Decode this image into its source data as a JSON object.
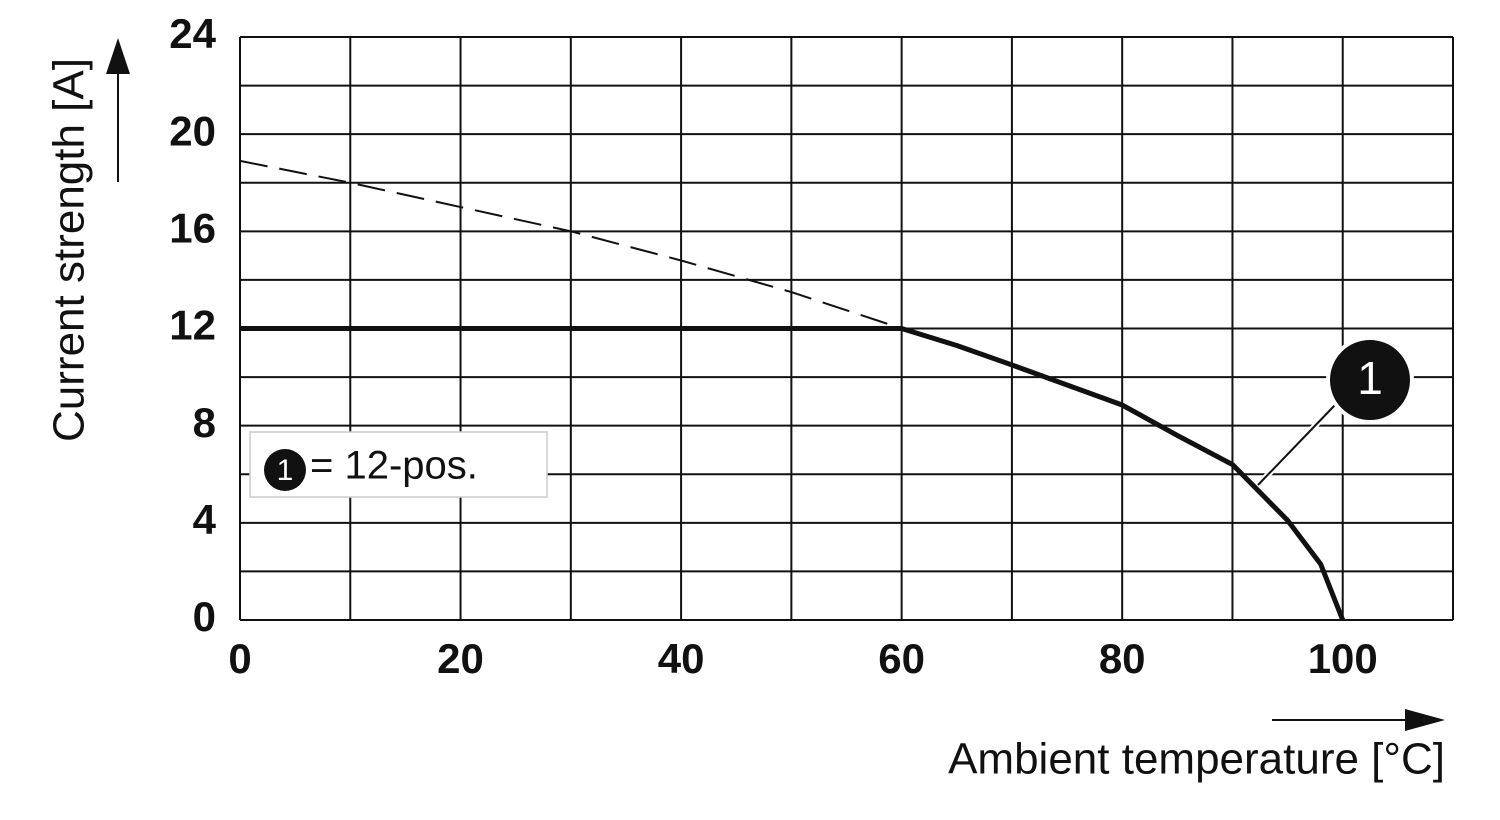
{
  "chart_data": {
    "type": "line",
    "xlabel": "Ambient temperature [°C]",
    "ylabel": "Current strength [A]",
    "xlim": [
      0,
      110
    ],
    "ylim": [
      0,
      24
    ],
    "xticks": [
      0,
      20,
      40,
      60,
      80,
      100
    ],
    "yticks": [
      0,
      4,
      8,
      12,
      16,
      20,
      24
    ],
    "x_grid": [
      0,
      10,
      20,
      30,
      40,
      50,
      60,
      70,
      80,
      90,
      100,
      110
    ],
    "y_grid": [
      0,
      2,
      4,
      6,
      8,
      10,
      12,
      14,
      16,
      18,
      20,
      22,
      24
    ],
    "grid": true,
    "series": [
      {
        "name": "= 12-pos.",
        "label": "1",
        "color": "#111111",
        "style": "solid",
        "x": [
          0,
          60,
          65,
          70,
          80,
          85,
          90,
          95,
          98,
          100
        ],
        "values": [
          12,
          12,
          11.3,
          10.5,
          8.85,
          7.6,
          6.4,
          4.1,
          2.3,
          0
        ]
      },
      {
        "color": "#111111",
        "style": "dashed",
        "x": [
          0,
          10,
          20,
          30,
          40,
          50,
          60
        ],
        "values": [
          18.9,
          18.0,
          17.0,
          16.0,
          14.8,
          13.5,
          12
        ]
      }
    ]
  }
}
